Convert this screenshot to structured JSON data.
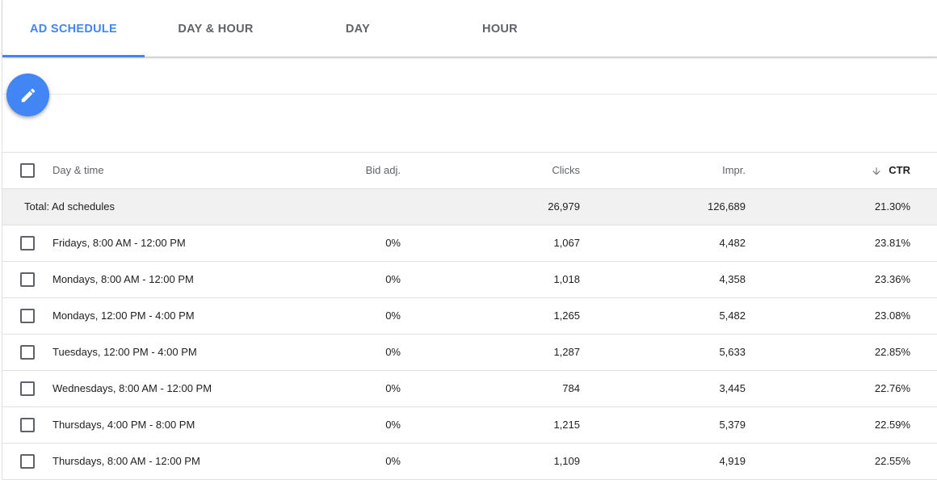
{
  "tabs": [
    {
      "label": "AD SCHEDULE",
      "active": true
    },
    {
      "label": "DAY & HOUR",
      "active": false
    },
    {
      "label": "DAY",
      "active": false
    },
    {
      "label": "HOUR",
      "active": false
    }
  ],
  "fab": {
    "icon": "pencil-icon"
  },
  "table": {
    "headers": {
      "day_time": "Day & time",
      "bid_adj": "Bid adj.",
      "clicks": "Clicks",
      "impr": "Impr.",
      "ctr": "CTR"
    },
    "sort": {
      "column": "ctr",
      "direction": "descending",
      "icon": "arrow-down-icon"
    },
    "total": {
      "label": "Total: Ad schedules",
      "bid_adj": "",
      "clicks": "26,979",
      "impr": "126,689",
      "ctr": "21.30%"
    },
    "rows": [
      {
        "day_time": "Fridays, 8:00 AM - 12:00 PM",
        "bid_adj": "0%",
        "clicks": "1,067",
        "impr": "4,482",
        "ctr": "23.81%"
      },
      {
        "day_time": "Mondays, 8:00 AM - 12:00 PM",
        "bid_adj": "0%",
        "clicks": "1,018",
        "impr": "4,358",
        "ctr": "23.36%"
      },
      {
        "day_time": "Mondays, 12:00 PM - 4:00 PM",
        "bid_adj": "0%",
        "clicks": "1,265",
        "impr": "5,482",
        "ctr": "23.08%"
      },
      {
        "day_time": "Tuesdays, 12:00 PM - 4:00 PM",
        "bid_adj": "0%",
        "clicks": "1,287",
        "impr": "5,633",
        "ctr": "22.85%"
      },
      {
        "day_time": "Wednesdays, 8:00 AM - 12:00 PM",
        "bid_adj": "0%",
        "clicks": "784",
        "impr": "3,445",
        "ctr": "22.76%"
      },
      {
        "day_time": "Thursdays, 4:00 PM - 8:00 PM",
        "bid_adj": "0%",
        "clicks": "1,215",
        "impr": "5,379",
        "ctr": "22.59%"
      },
      {
        "day_time": "Thursdays, 8:00 AM - 12:00 PM",
        "bid_adj": "0%",
        "clicks": "1,109",
        "impr": "4,919",
        "ctr": "22.55%"
      }
    ]
  },
  "colors": {
    "accent": "#4285f4",
    "text": "#202124",
    "muted": "#5f6368",
    "total_bg": "#f1f1f1"
  }
}
